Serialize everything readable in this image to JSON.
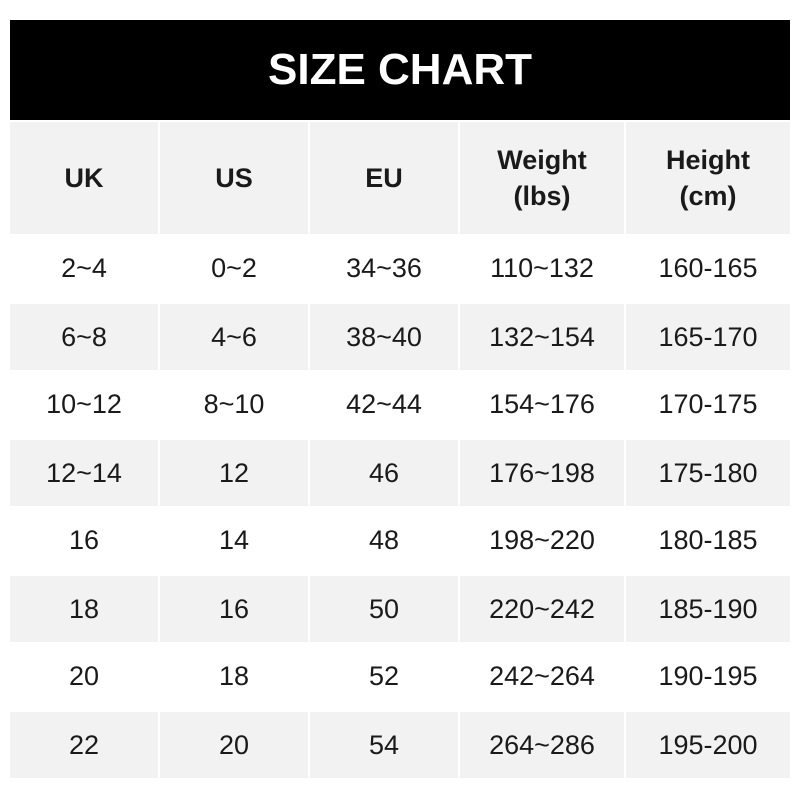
{
  "title": "SIZE CHART",
  "headers": [
    "UK",
    "US",
    "EU",
    "Weight\n(lbs)",
    "Height\n(cm)"
  ],
  "rows": [
    [
      "2~4",
      "0~2",
      "34~36",
      "110~132",
      "160-165"
    ],
    [
      "6~8",
      "4~6",
      "38~40",
      "132~154",
      "165-170"
    ],
    [
      "10~12",
      "8~10",
      "42~44",
      "154~176",
      "170-175"
    ],
    [
      "12~14",
      "12",
      "46",
      "176~198",
      "175-180"
    ],
    [
      "16",
      "14",
      "48",
      "198~220",
      "180-185"
    ],
    [
      "18",
      "16",
      "50",
      "220~242",
      "185-190"
    ],
    [
      "20",
      "18",
      "52",
      "242~264",
      "190-195"
    ],
    [
      "22",
      "20",
      "54",
      "264~286",
      "195-200"
    ]
  ],
  "colors": {
    "title_bg": "#000000",
    "header_bg": "#f2f2f2",
    "stripe_bg": "#f2f2f2"
  }
}
